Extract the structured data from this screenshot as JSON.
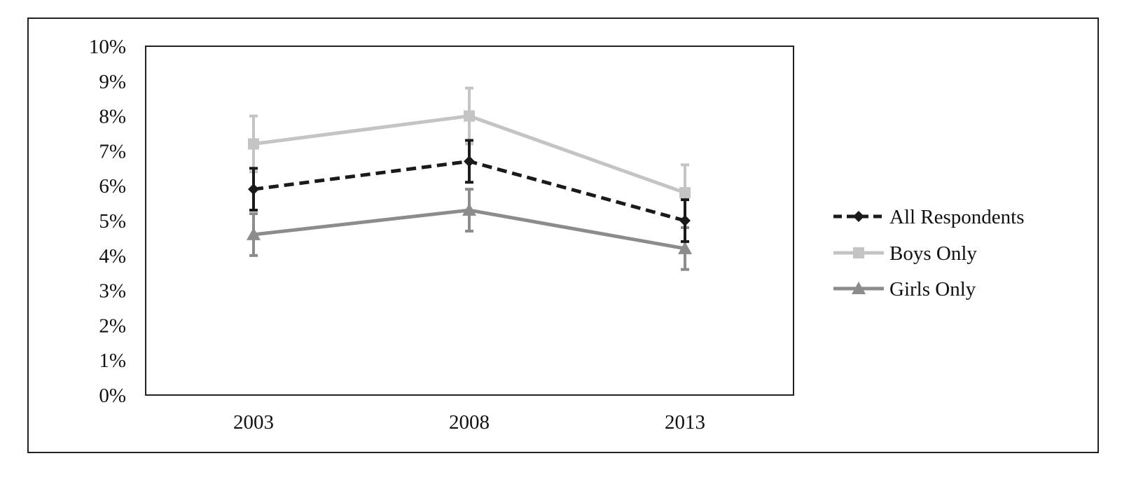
{
  "chart_data": {
    "type": "line",
    "title": "",
    "xlabel": "",
    "ylabel": "",
    "categories": [
      "2003",
      "2008",
      "2013"
    ],
    "ylim": [
      0,
      10
    ],
    "yticks": [
      "0%",
      "1%",
      "2%",
      "3%",
      "4%",
      "5%",
      "6%",
      "7%",
      "8%",
      "9%",
      "10%"
    ],
    "grid": false,
    "legend_position": "right",
    "series": [
      {
        "name": "All Respondents",
        "values": [
          5.9,
          6.7,
          5.0
        ],
        "error_low": [
          5.3,
          6.1,
          4.4
        ],
        "error_high": [
          6.5,
          7.3,
          5.6
        ],
        "color": "#1a1a1a",
        "line_style": "dashed",
        "marker": "diamond"
      },
      {
        "name": "Boys Only",
        "values": [
          7.2,
          8.0,
          5.8
        ],
        "error_low": [
          6.4,
          7.2,
          5.0
        ],
        "error_high": [
          8.0,
          8.8,
          6.6
        ],
        "color": "#c4c4c4",
        "line_style": "solid",
        "marker": "square"
      },
      {
        "name": "Girls Only",
        "values": [
          4.6,
          5.3,
          4.2
        ],
        "error_low": [
          4.0,
          4.7,
          3.6
        ],
        "error_high": [
          5.2,
          5.9,
          4.8
        ],
        "color": "#8c8c8c",
        "line_style": "solid",
        "marker": "triangle"
      }
    ]
  }
}
